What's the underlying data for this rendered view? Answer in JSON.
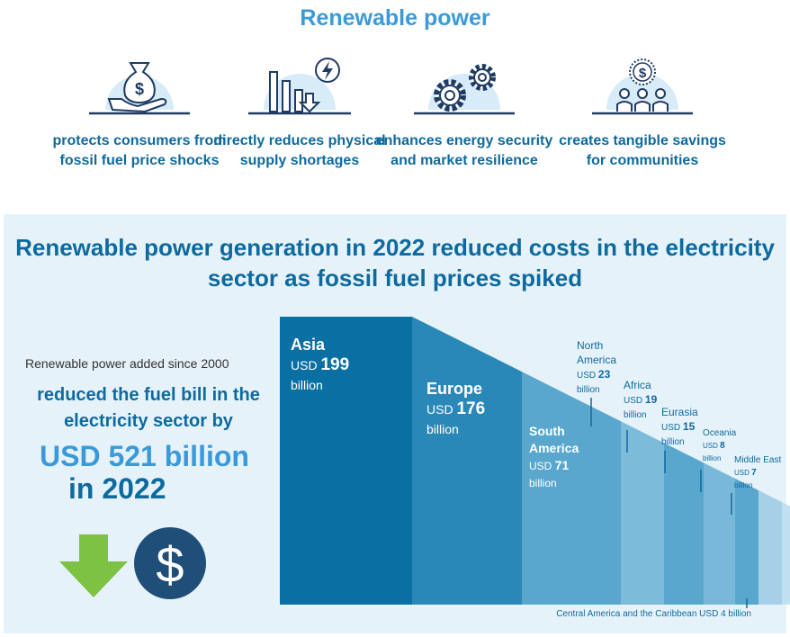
{
  "header": {
    "title": "Renewable power"
  },
  "benefits": [
    {
      "icon": "money-bag-hand-icon",
      "text": "protects consumers from fossil fuel price shocks"
    },
    {
      "icon": "bar-chart-down-lightning-icon",
      "text": "directly reduces physical supply shortages"
    },
    {
      "icon": "gears-icon",
      "text": "enhances energy security and market resilience"
    },
    {
      "icon": "community-savings-icon",
      "text": "creates tangible savings for communities"
    }
  ],
  "summary": {
    "added": "Renewable power added since 2000",
    "reduced": "reduced the fuel bill in the electricity sector by",
    "amount": "USD 521 billion",
    "year": "in 2022",
    "icons": [
      "down-arrow-icon",
      "dollar-coin-icon"
    ]
  },
  "chart_data": {
    "type": "bar",
    "title": "Renewable power generation in 2022 reduced costs in the electricity sector as fossil fuel prices spiked",
    "unit_prefix": "USD",
    "unit_suffix": "billion",
    "categories": [
      "Asia",
      "Europe",
      "South America",
      "North America",
      "Africa",
      "Eurasia",
      "Oceania",
      "Middle East",
      "Central America and the Caribbean"
    ],
    "values": [
      199,
      176,
      71,
      23,
      19,
      15,
      8,
      7,
      4
    ],
    "colors": [
      "#0a6fa3",
      "#2a88b9",
      "#5aa7cd",
      "#7dbbdb",
      "#5aa7cd",
      "#79b8d9",
      "#5aa7cd",
      "#a6d0e7",
      "#c0dff0"
    ],
    "footnote": "Central America and the Caribbean USD 4 billion"
  }
}
